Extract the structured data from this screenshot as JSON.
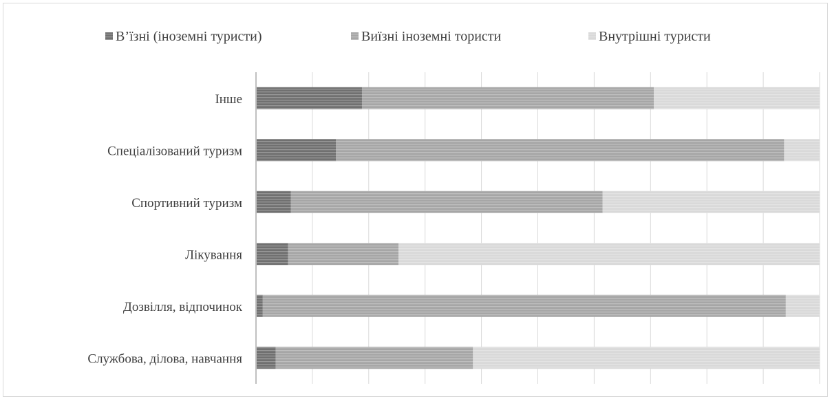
{
  "chart_data": {
    "type": "bar",
    "orientation": "horizontal",
    "stacked": "percent",
    "title": "",
    "xlabel": "",
    "ylabel": "",
    "xlim": [
      0,
      1
    ],
    "grid": true,
    "legend_position": "top",
    "categories": [
      "Службова, ділова, навчання",
      "Дозвілля, відпочинок",
      "Лікування",
      "Спортивний туризм",
      "Спеціалізований туризм",
      "Інше"
    ],
    "series": [
      {
        "name": "В’їзні (іноземні туристи)",
        "color": "#707070",
        "values": [
          0.035,
          0.012,
          0.057,
          0.062,
          0.142,
          0.188
        ]
      },
      {
        "name": "Виїзні іноземні тористи",
        "color": "#a6a6a6",
        "values": [
          0.35,
          0.928,
          0.196,
          0.553,
          0.795,
          0.518
        ]
      },
      {
        "name": "Внутрішні туристи",
        "color": "#d9d9d9",
        "values": [
          0.615,
          0.06,
          0.747,
          0.385,
          0.063,
          0.294
        ]
      }
    ]
  }
}
